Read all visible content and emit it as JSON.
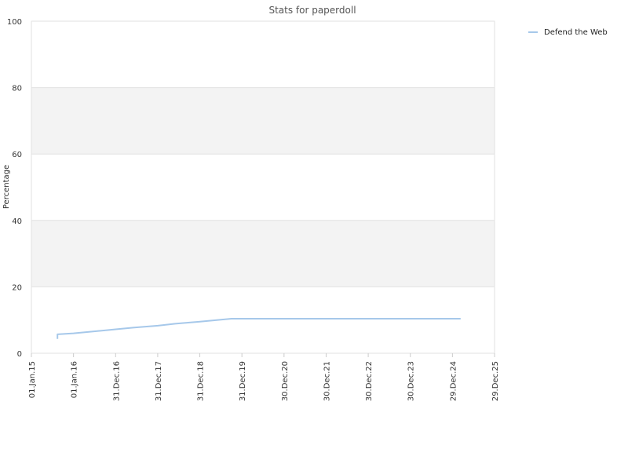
{
  "chart_data": {
    "type": "line",
    "title": "Stats for paperdoll",
    "xlabel": "",
    "ylabel": "Percentage",
    "ylim": [
      0,
      100
    ],
    "y_ticks": [
      0,
      20,
      40,
      60,
      80,
      100
    ],
    "x_ticks": [
      "01.Jan.15",
      "01.Jan.16",
      "31.Dec.16",
      "31.Dec.17",
      "31.Dec.18",
      "31.Dec.19",
      "30.Dec.20",
      "30.Dec.21",
      "30.Dec.22",
      "30.Dec.23",
      "29.Dec.24",
      "29.Dec.25"
    ],
    "grid": true,
    "alternating_bands": true,
    "legend_position": "top-right",
    "series": [
      {
        "name": "Defend the Web",
        "color": "#a6c8ea",
        "points": [
          {
            "x": "2015-08-15",
            "y": 4.3
          },
          {
            "x": "2015-08-15",
            "y": 5.7
          },
          {
            "x": "2016-01-01",
            "y": 6.0
          },
          {
            "x": "2016-06-01",
            "y": 6.5
          },
          {
            "x": "2017-01-01",
            "y": 7.2
          },
          {
            "x": "2017-06-01",
            "y": 7.7
          },
          {
            "x": "2018-01-01",
            "y": 8.3
          },
          {
            "x": "2018-06-01",
            "y": 8.9
          },
          {
            "x": "2019-01-01",
            "y": 9.5
          },
          {
            "x": "2019-10-01",
            "y": 10.4
          },
          {
            "x": "2020-06-01",
            "y": 10.4
          },
          {
            "x": "2022-01-01",
            "y": 10.4
          },
          {
            "x": "2024-01-01",
            "y": 10.4
          },
          {
            "x": "2025-03-10",
            "y": 10.4
          }
        ]
      }
    ]
  }
}
